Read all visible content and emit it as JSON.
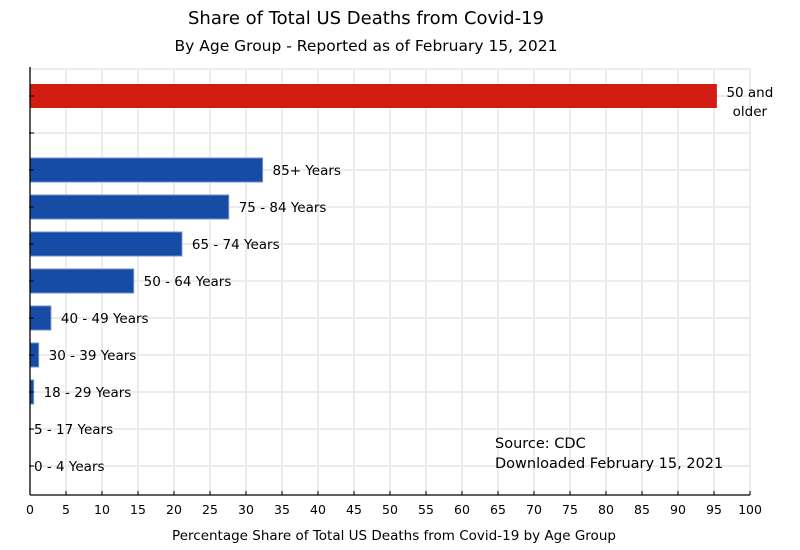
{
  "chart_data": {
    "type": "bar",
    "orientation": "horizontal",
    "title": "Share of Total US Deaths from Covid-19",
    "subtitle": "By Age Group - Reported as of February 15, 2021",
    "xlabel": "Percentage Share of Total US Deaths from Covid-19 by Age Group",
    "ylabel": "",
    "xlim": [
      0,
      100
    ],
    "xticks": [
      0,
      5,
      10,
      15,
      20,
      25,
      30,
      35,
      40,
      45,
      50,
      55,
      60,
      65,
      70,
      75,
      80,
      85,
      90,
      95,
      100
    ],
    "grid": true,
    "categories": [
      "50 and older",
      "",
      "85+ Years",
      "75 - 84 Years",
      "65 - 74 Years",
      "50 - 64 Years",
      "40 - 49 Years",
      "30 - 39 Years",
      "18 - 29 Years",
      "5 - 17 Years",
      "0 - 4 Years"
    ],
    "values": [
      95.4,
      null,
      32.3,
      27.6,
      21.1,
      14.4,
      2.9,
      1.2,
      0.5,
      0.0,
      0.0
    ],
    "bar_labels": [
      [
        "50 and",
        "older"
      ],
      [],
      [
        "85+ Years"
      ],
      [
        "75 - 84 Years"
      ],
      [
        "65 - 74 Years"
      ],
      [
        "50 - 64 Years"
      ],
      [
        "40 - 49 Years"
      ],
      [
        "30 - 39 Years"
      ],
      [
        "18 - 29 Years"
      ],
      [
        "5 - 17 Years"
      ],
      [
        "0 - 4 Years"
      ]
    ],
    "bar_colors": [
      "#d21c12",
      null,
      "#164ca5",
      "#164ca5",
      "#164ca5",
      "#164ca5",
      "#164ca5",
      "#164ca5",
      "#164ca5",
      "#164ca5",
      "#164ca5"
    ],
    "annotations": [
      "Source:  CDC",
      "Downloaded February 15, 2021"
    ],
    "annotation_position": "bottom-right"
  },
  "colors": {
    "highlight": "#d21c12",
    "primary": "#164ca5",
    "grid": "#ececec",
    "axis": "#000000"
  }
}
